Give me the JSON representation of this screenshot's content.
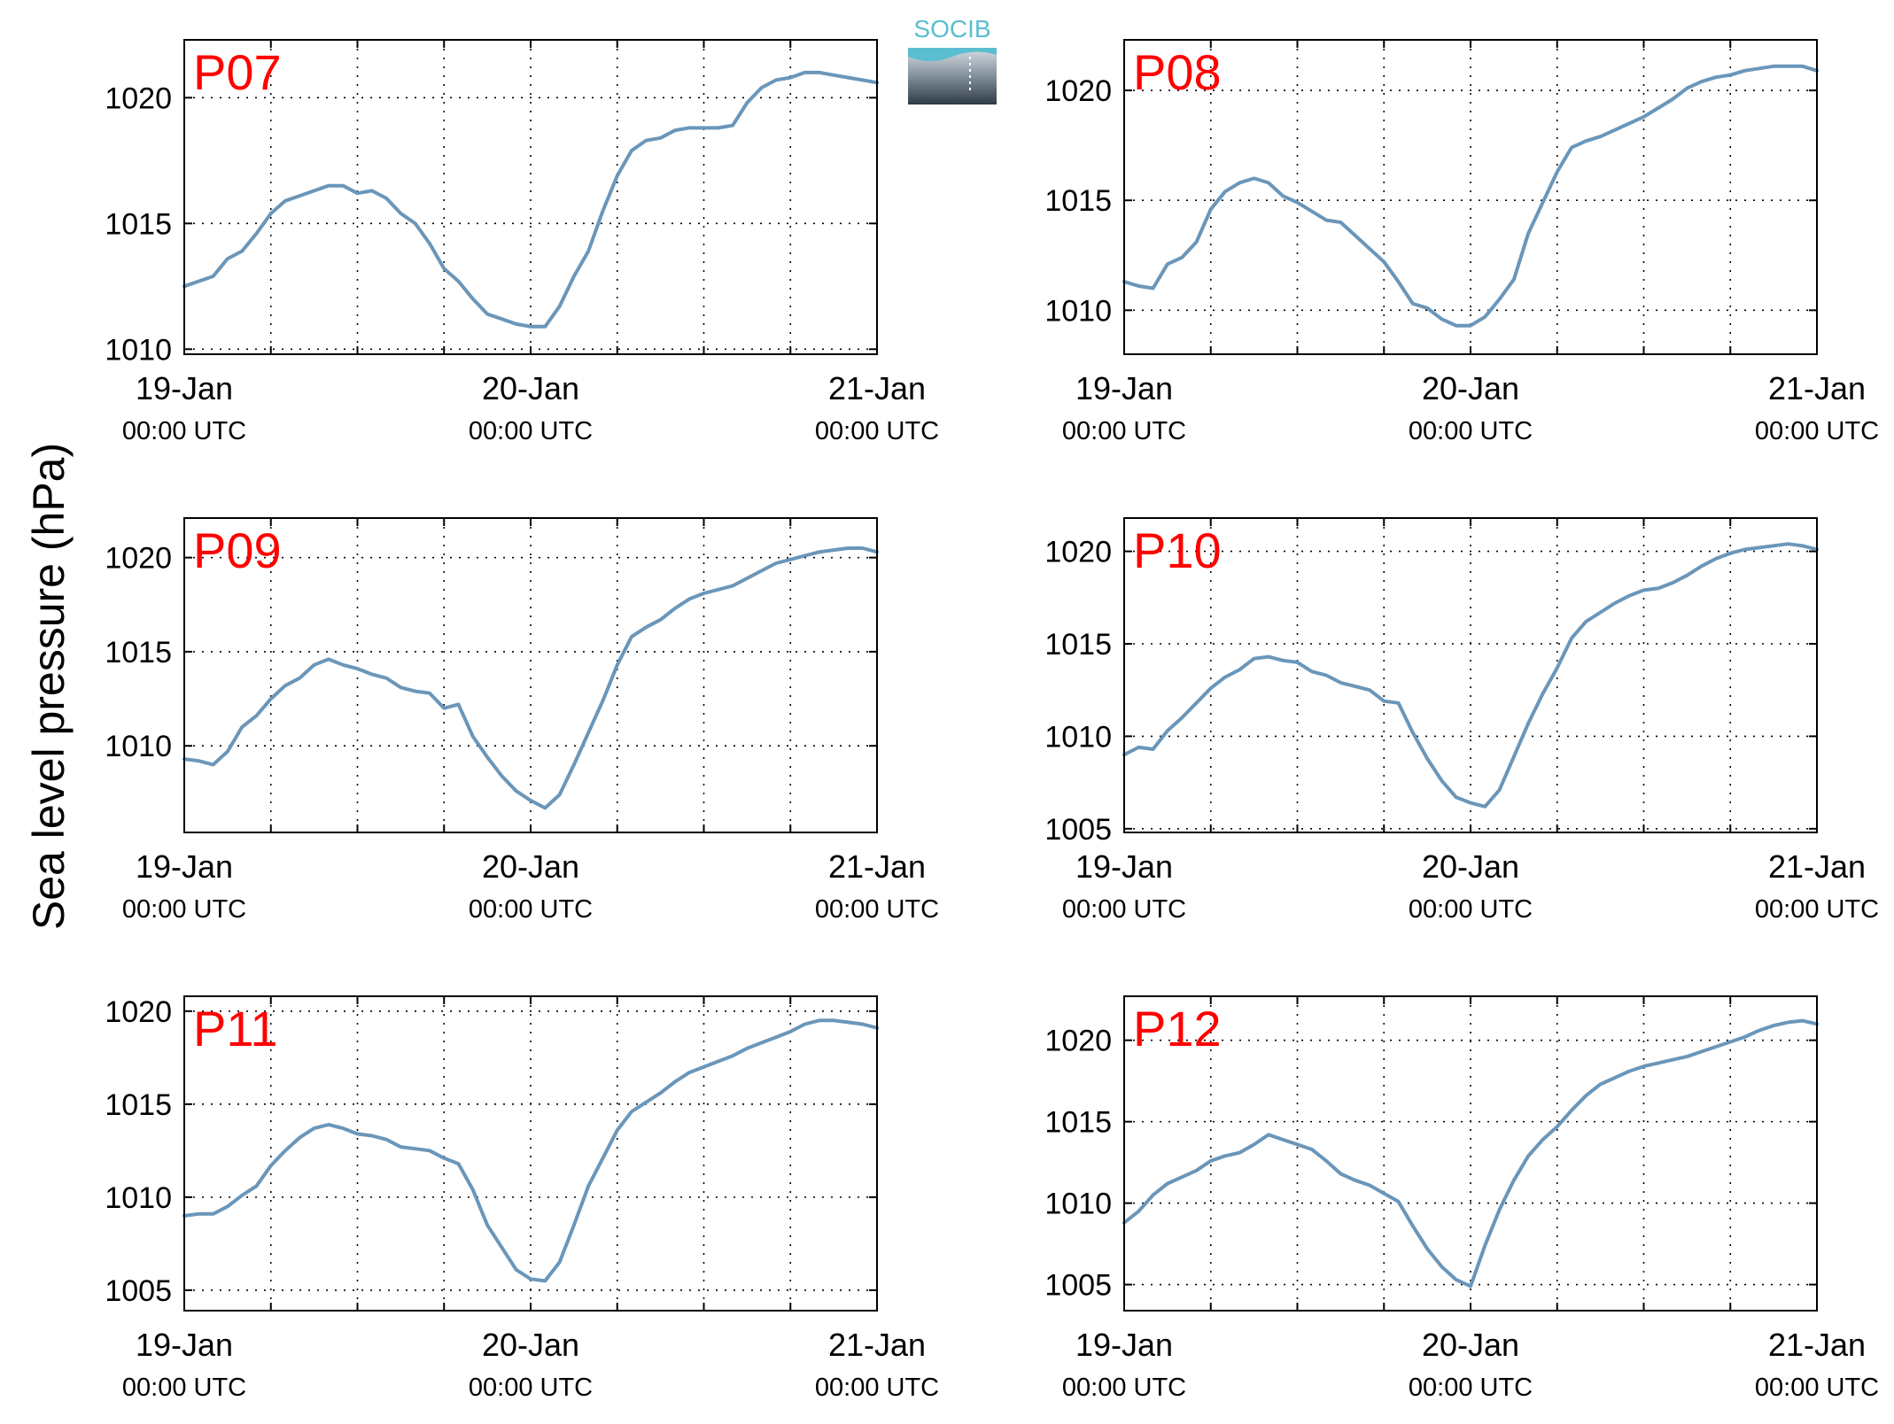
{
  "figure": {
    "ylabel": "Sea level pressure (hPa)",
    "logo_text": "SOCIB",
    "colors": {
      "line": "#6a96b9",
      "panel_label": "#ff0000",
      "axes": "#000000",
      "logo_top": "#5bbdd0",
      "logo_bottom": "#3b4650"
    }
  },
  "chart_data": [
    {
      "type": "line",
      "label": "P07",
      "xticks": [
        {
          "main": "19-Jan",
          "sub": "00:00 UTC"
        },
        {
          "main": "20-Jan",
          "sub": "00:00 UTC"
        },
        {
          "main": "21-Jan",
          "sub": "00:00 UTC"
        }
      ],
      "xlim": [
        0,
        48
      ],
      "ylim": [
        1009.8,
        1022.3
      ],
      "yticks": [
        1010,
        1015,
        1020
      ],
      "grid": true,
      "x": [
        0,
        1,
        2,
        3,
        4,
        5,
        6,
        7,
        8,
        9,
        10,
        11,
        12,
        13,
        14,
        15,
        16,
        17,
        18,
        19,
        20,
        21,
        22,
        23,
        24,
        25,
        26,
        27,
        28,
        29,
        30,
        31,
        32,
        33,
        34,
        35,
        36,
        37,
        38,
        39,
        40,
        41,
        42,
        43,
        44,
        45,
        46,
        47,
        48
      ],
      "y": [
        1012.5,
        1012.7,
        1012.9,
        1013.6,
        1013.9,
        1014.6,
        1015.4,
        1015.9,
        1016.1,
        1016.3,
        1016.5,
        1016.5,
        1016.2,
        1016.3,
        1016.0,
        1015.4,
        1015.0,
        1014.2,
        1013.2,
        1012.7,
        1012.0,
        1011.4,
        1011.2,
        1011.0,
        1010.9,
        1010.9,
        1011.7,
        1012.9,
        1013.9,
        1015.5,
        1016.9,
        1017.9,
        1018.3,
        1018.4,
        1018.7,
        1018.8,
        1018.8,
        1018.8,
        1018.9,
        1019.8,
        1020.4,
        1020.7,
        1020.8,
        1021.0,
        1021.0,
        1020.9,
        1020.8,
        1020.7,
        1020.6
      ]
    },
    {
      "type": "line",
      "label": "P08",
      "xticks": [
        {
          "main": "19-Jan",
          "sub": "00:00 UTC"
        },
        {
          "main": "20-Jan",
          "sub": "00:00 UTC"
        },
        {
          "main": "21-Jan",
          "sub": "00:00 UTC"
        }
      ],
      "xlim": [
        0,
        48
      ],
      "ylim": [
        1008.0,
        1022.3
      ],
      "yticks": [
        1010,
        1015,
        1020
      ],
      "grid": true,
      "x": [
        0,
        1,
        2,
        3,
        4,
        5,
        6,
        7,
        8,
        9,
        10,
        11,
        12,
        13,
        14,
        15,
        16,
        17,
        18,
        19,
        20,
        21,
        22,
        23,
        24,
        25,
        26,
        27,
        28,
        29,
        30,
        31,
        32,
        33,
        34,
        35,
        36,
        37,
        38,
        39,
        40,
        41,
        42,
        43,
        44,
        45,
        46,
        47,
        48
      ],
      "y": [
        1011.3,
        1011.1,
        1011.0,
        1012.1,
        1012.4,
        1013.1,
        1014.6,
        1015.4,
        1015.8,
        1016.0,
        1015.8,
        1015.2,
        1014.9,
        1014.5,
        1014.1,
        1014.0,
        1013.4,
        1012.8,
        1012.2,
        1011.3,
        1010.3,
        1010.1,
        1009.6,
        1009.3,
        1009.3,
        1009.7,
        1010.5,
        1011.4,
        1013.5,
        1014.9,
        1016.3,
        1017.4,
        1017.7,
        1017.9,
        1018.2,
        1018.5,
        1018.8,
        1019.2,
        1019.6,
        1020.1,
        1020.4,
        1020.6,
        1020.7,
        1020.9,
        1021.0,
        1021.1,
        1021.1,
        1021.1,
        1020.9
      ]
    },
    {
      "type": "line",
      "label": "P09",
      "xticks": [
        {
          "main": "19-Jan",
          "sub": "00:00 UTC"
        },
        {
          "main": "20-Jan",
          "sub": "00:00 UTC"
        },
        {
          "main": "21-Jan",
          "sub": "00:00 UTC"
        }
      ],
      "xlim": [
        0,
        48
      ],
      "ylim": [
        1005.4,
        1022.1
      ],
      "yticks": [
        1010,
        1015,
        1020
      ],
      "grid": true,
      "x": [
        0,
        1,
        2,
        3,
        4,
        5,
        6,
        7,
        8,
        9,
        10,
        11,
        12,
        13,
        14,
        15,
        16,
        17,
        18,
        19,
        20,
        21,
        22,
        23,
        24,
        25,
        26,
        27,
        28,
        29,
        30,
        31,
        32,
        33,
        34,
        35,
        36,
        37,
        38,
        39,
        40,
        41,
        42,
        43,
        44,
        45,
        46,
        47,
        48
      ],
      "y": [
        1009.3,
        1009.2,
        1009.0,
        1009.7,
        1011.0,
        1011.6,
        1012.5,
        1013.2,
        1013.6,
        1014.3,
        1014.6,
        1014.3,
        1014.1,
        1013.8,
        1013.6,
        1013.1,
        1012.9,
        1012.8,
        1012.0,
        1012.2,
        1010.5,
        1009.4,
        1008.4,
        1007.6,
        1007.1,
        1006.7,
        1007.4,
        1009.0,
        1010.7,
        1012.4,
        1014.3,
        1015.8,
        1016.3,
        1016.7,
        1017.3,
        1017.8,
        1018.1,
        1018.3,
        1018.5,
        1018.9,
        1019.3,
        1019.7,
        1019.9,
        1020.1,
        1020.3,
        1020.4,
        1020.5,
        1020.5,
        1020.3
      ]
    },
    {
      "type": "line",
      "label": "P10",
      "xticks": [
        {
          "main": "19-Jan",
          "sub": "00:00 UTC"
        },
        {
          "main": "20-Jan",
          "sub": "00:00 UTC"
        },
        {
          "main": "21-Jan",
          "sub": "00:00 UTC"
        }
      ],
      "xlim": [
        0,
        48
      ],
      "ylim": [
        1004.8,
        1021.8
      ],
      "yticks": [
        1005,
        1010,
        1015,
        1020
      ],
      "grid": true,
      "x": [
        0,
        1,
        2,
        3,
        4,
        5,
        6,
        7,
        8,
        9,
        10,
        11,
        12,
        13,
        14,
        15,
        16,
        17,
        18,
        19,
        20,
        21,
        22,
        23,
        24,
        25,
        26,
        27,
        28,
        29,
        30,
        31,
        32,
        33,
        34,
        35,
        36,
        37,
        38,
        39,
        40,
        41,
        42,
        43,
        44,
        45,
        46,
        47,
        48
      ],
      "y": [
        1009.0,
        1009.4,
        1009.3,
        1010.3,
        1011.0,
        1011.8,
        1012.6,
        1013.2,
        1013.6,
        1014.2,
        1014.3,
        1014.1,
        1014.0,
        1013.5,
        1013.3,
        1012.9,
        1012.7,
        1012.5,
        1011.9,
        1011.8,
        1010.2,
        1008.8,
        1007.6,
        1006.7,
        1006.4,
        1006.2,
        1007.1,
        1008.9,
        1010.7,
        1012.3,
        1013.7,
        1015.3,
        1016.2,
        1016.7,
        1017.2,
        1017.6,
        1017.9,
        1018.0,
        1018.3,
        1018.7,
        1019.2,
        1019.6,
        1019.9,
        1020.1,
        1020.2,
        1020.3,
        1020.4,
        1020.3,
        1020.1
      ]
    },
    {
      "type": "line",
      "label": "P11",
      "xticks": [
        {
          "main": "19-Jan",
          "sub": "00:00 UTC"
        },
        {
          "main": "20-Jan",
          "sub": "00:00 UTC"
        },
        {
          "main": "21-Jan",
          "sub": "00:00 UTC"
        }
      ],
      "xlim": [
        0,
        48
      ],
      "ylim": [
        1003.9,
        1020.8
      ],
      "yticks": [
        1005,
        1010,
        1015,
        1020
      ],
      "grid": true,
      "x": [
        0,
        1,
        2,
        3,
        4,
        5,
        6,
        7,
        8,
        9,
        10,
        11,
        12,
        13,
        14,
        15,
        16,
        17,
        18,
        19,
        20,
        21,
        22,
        23,
        24,
        25,
        26,
        27,
        28,
        29,
        30,
        31,
        32,
        33,
        34,
        35,
        36,
        37,
        38,
        39,
        40,
        41,
        42,
        43,
        44,
        45,
        46,
        47,
        48
      ],
      "y": [
        1009.0,
        1009.1,
        1009.1,
        1009.5,
        1010.1,
        1010.6,
        1011.7,
        1012.5,
        1013.2,
        1013.7,
        1013.9,
        1013.7,
        1013.4,
        1013.3,
        1013.1,
        1012.7,
        1012.6,
        1012.5,
        1012.1,
        1011.8,
        1010.4,
        1008.5,
        1007.3,
        1006.1,
        1005.6,
        1005.5,
        1006.5,
        1008.5,
        1010.6,
        1012.1,
        1013.6,
        1014.6,
        1015.1,
        1015.6,
        1016.2,
        1016.7,
        1017.0,
        1017.3,
        1017.6,
        1018.0,
        1018.3,
        1018.6,
        1018.9,
        1019.3,
        1019.5,
        1019.5,
        1019.4,
        1019.3,
        1019.1
      ]
    },
    {
      "type": "line",
      "label": "P12",
      "xticks": [
        {
          "main": "19-Jan",
          "sub": "00:00 UTC"
        },
        {
          "main": "20-Jan",
          "sub": "00:00 UTC"
        },
        {
          "main": "21-Jan",
          "sub": "00:00 UTC"
        }
      ],
      "xlim": [
        0,
        48
      ],
      "ylim": [
        1003.4,
        1022.7
      ],
      "yticks": [
        1005,
        1010,
        1015,
        1020
      ],
      "grid": true,
      "x": [
        0,
        1,
        2,
        3,
        4,
        5,
        6,
        7,
        8,
        9,
        10,
        11,
        12,
        13,
        14,
        15,
        16,
        17,
        18,
        19,
        20,
        21,
        22,
        23,
        24,
        25,
        26,
        27,
        28,
        29,
        30,
        31,
        32,
        33,
        34,
        35,
        36,
        37,
        38,
        39,
        40,
        41,
        42,
        43,
        44,
        45,
        46,
        47,
        48
      ],
      "y": [
        1008.8,
        1009.5,
        1010.5,
        1011.2,
        1011.6,
        1012.0,
        1012.6,
        1012.9,
        1013.1,
        1013.6,
        1014.2,
        1013.9,
        1013.6,
        1013.3,
        1012.6,
        1011.8,
        1011.4,
        1011.1,
        1010.6,
        1010.1,
        1008.6,
        1007.2,
        1006.1,
        1005.3,
        1004.9,
        1007.4,
        1009.6,
        1011.4,
        1012.9,
        1013.9,
        1014.7,
        1015.7,
        1016.6,
        1017.3,
        1017.7,
        1018.1,
        1018.4,
        1018.6,
        1018.8,
        1019.0,
        1019.3,
        1019.6,
        1019.9,
        1020.2,
        1020.6,
        1020.9,
        1021.1,
        1021.2,
        1021.0
      ]
    }
  ]
}
